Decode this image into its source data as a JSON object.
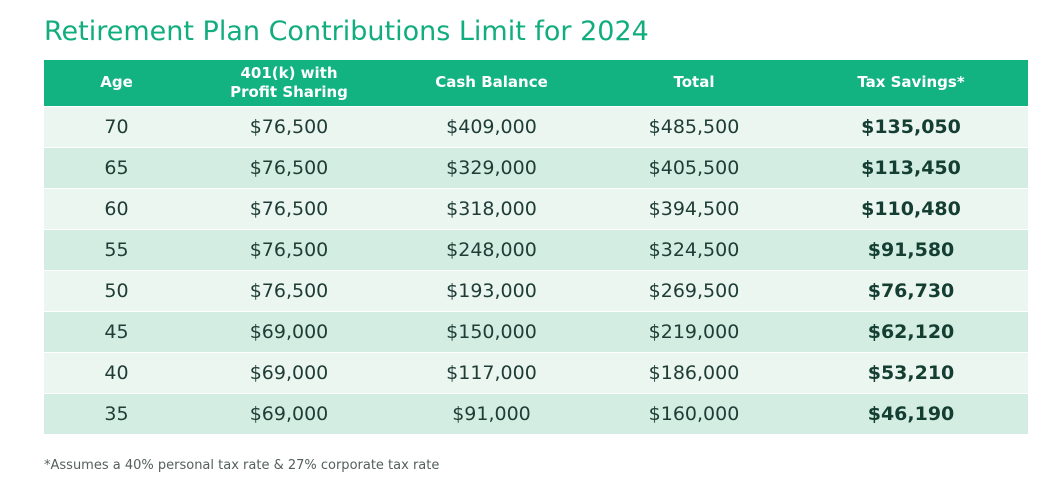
{
  "title": "Retirement Plan Contributions Limit for 2024",
  "table": {
    "headers": [
      {
        "line1": "Age",
        "line2": ""
      },
      {
        "line1": "401(k) with",
        "line2": "Profit Sharing"
      },
      {
        "line1": "Cash Balance",
        "line2": ""
      },
      {
        "line1": "Total",
        "line2": ""
      },
      {
        "line1": "Tax Savings*",
        "line2": ""
      }
    ],
    "rows": [
      {
        "age": "70",
        "k401": "$76,500",
        "cash_balance": "$409,000",
        "total": "$485,500",
        "tax_savings": "$135,050"
      },
      {
        "age": "65",
        "k401": "$76,500",
        "cash_balance": "$329,000",
        "total": "$405,500",
        "tax_savings": "$113,450"
      },
      {
        "age": "60",
        "k401": "$76,500",
        "cash_balance": "$318,000",
        "total": "$394,500",
        "tax_savings": "$110,480"
      },
      {
        "age": "55",
        "k401": "$76,500",
        "cash_balance": "$248,000",
        "total": "$324,500",
        "tax_savings": "$91,580"
      },
      {
        "age": "50",
        "k401": "$76,500",
        "cash_balance": "$193,000",
        "total": "$269,500",
        "tax_savings": "$76,730"
      },
      {
        "age": "45",
        "k401": "$69,000",
        "cash_balance": "$150,000",
        "total": "$219,000",
        "tax_savings": "$62,120"
      },
      {
        "age": "40",
        "k401": "$69,000",
        "cash_balance": "$117,000",
        "total": "$186,000",
        "tax_savings": "$53,210"
      },
      {
        "age": "35",
        "k401": "$69,000",
        "cash_balance": "$91,000",
        "total": "$160,000",
        "tax_savings": "$46,190"
      }
    ]
  },
  "footnote": "*Assumes a 40% personal tax rate & 27% corporate tax rate",
  "colors": {
    "title": "#12ad7e",
    "header_bg": "#12b281",
    "row_light": "#ebf6f1",
    "row_dark": "#d3ede2"
  }
}
